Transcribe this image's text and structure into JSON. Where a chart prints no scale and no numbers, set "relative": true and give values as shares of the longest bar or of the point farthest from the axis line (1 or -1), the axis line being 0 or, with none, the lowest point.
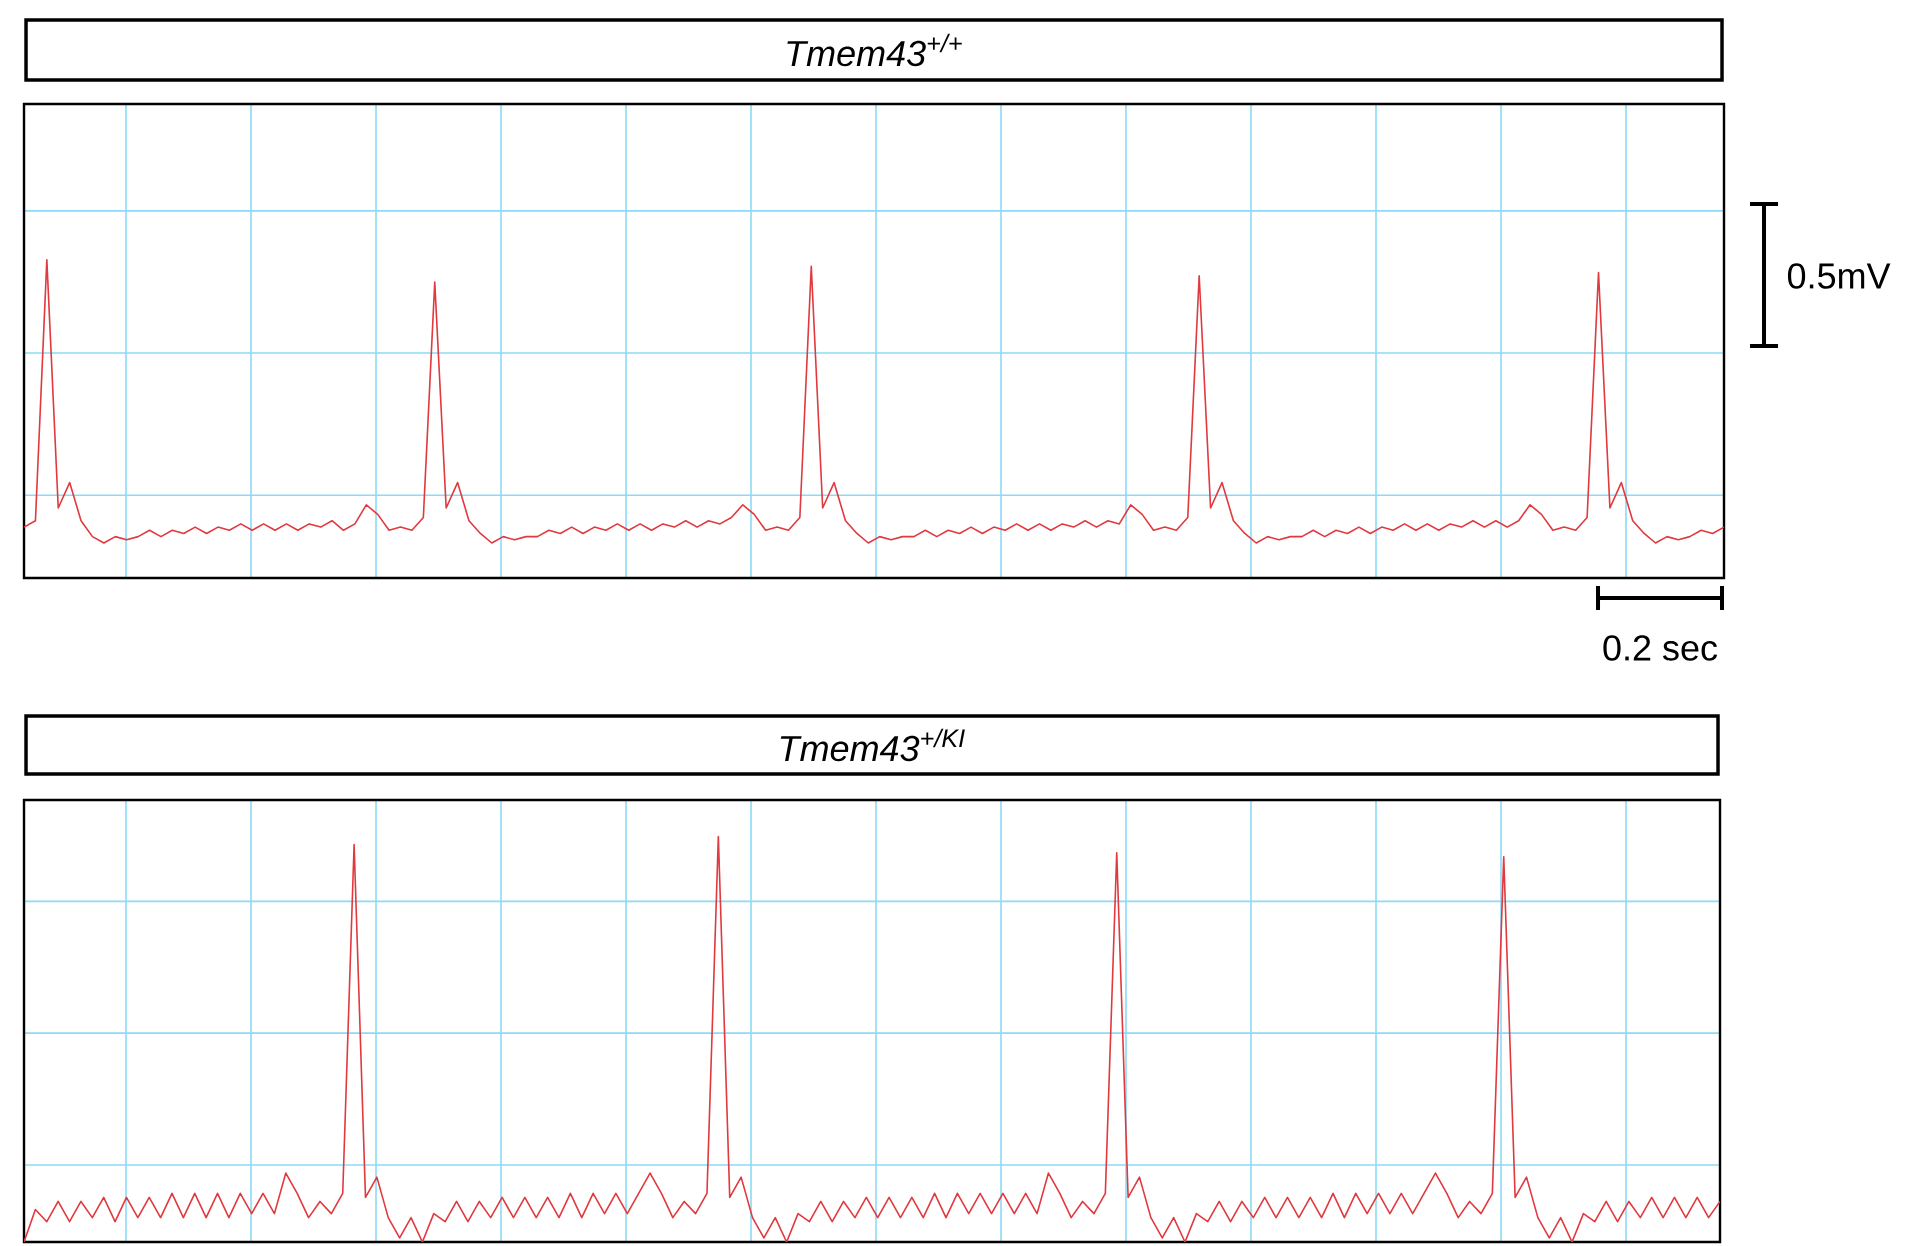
{
  "chart_data": [
    {
      "type": "line",
      "title": "Tmem43$^{+/+}$",
      "relative": true,
      "grid": true,
      "tick_labels": false,
      "color": "#e0393e",
      "annotations": [
        "0.5mV",
        "0.2 sec"
      ],
      "categories": [
        null,
        null,
        null,
        null,
        null,
        null,
        null,
        null,
        null,
        null,
        null,
        null,
        null,
        null,
        null,
        null,
        null,
        null,
        null,
        null,
        null,
        null,
        null,
        null,
        null,
        null,
        null,
        null,
        null,
        null,
        null,
        null,
        null,
        null,
        null,
        null,
        null,
        null,
        null,
        null,
        null,
        null,
        null,
        null,
        null,
        null,
        null,
        null,
        null,
        null,
        null,
        null,
        null,
        null,
        null,
        null,
        null,
        null,
        null,
        null,
        null,
        null,
        null,
        null,
        null,
        null,
        null,
        null,
        null,
        null,
        null,
        null,
        null,
        null,
        null,
        null,
        null,
        null,
        null,
        null,
        null,
        null,
        null,
        null,
        null,
        null,
        null,
        null,
        null,
        null,
        null,
        null,
        null,
        null,
        null,
        null,
        null,
        null,
        null,
        null,
        null,
        null,
        null,
        null,
        null,
        null,
        null,
        null,
        null,
        null,
        null,
        null,
        null,
        null,
        null,
        null,
        null,
        null,
        null,
        null,
        null,
        null,
        null,
        null,
        null,
        null,
        null,
        null,
        null,
        null,
        null,
        null,
        null,
        null,
        null,
        null,
        null,
        null,
        null,
        null,
        null,
        null,
        null,
        null,
        null,
        null,
        null,
        null,
        null,
        null
      ],
      "values": [
        0.16,
        0.18,
        1.0,
        0.22,
        0.3,
        0.18,
        0.13,
        0.11,
        0.13,
        0.12,
        0.13,
        0.15,
        0.13,
        0.15,
        0.14,
        0.16,
        0.14,
        0.16,
        0.15,
        0.17,
        0.15,
        0.17,
        0.15,
        0.17,
        0.15,
        0.17,
        0.16,
        0.18,
        0.15,
        0.17,
        0.23,
        0.2,
        0.15,
        0.16,
        0.15,
        0.19,
        0.93,
        0.22,
        0.3,
        0.18,
        0.14,
        0.11,
        0.13,
        0.12,
        0.13,
        0.13,
        0.15,
        0.14,
        0.16,
        0.14,
        0.16,
        0.15,
        0.17,
        0.15,
        0.17,
        0.15,
        0.17,
        0.16,
        0.18,
        0.16,
        0.18,
        0.17,
        0.19,
        0.23,
        0.2,
        0.15,
        0.16,
        0.15,
        0.19,
        0.98,
        0.22,
        0.3,
        0.18,
        0.14,
        0.11,
        0.13,
        0.12,
        0.13,
        0.13,
        0.15,
        0.13,
        0.15,
        0.14,
        0.16,
        0.14,
        0.16,
        0.15,
        0.17,
        0.15,
        0.17,
        0.15,
        0.17,
        0.16,
        0.18,
        0.16,
        0.18,
        0.17,
        0.23,
        0.2,
        0.15,
        0.16,
        0.15,
        0.19,
        0.95,
        0.22,
        0.3,
        0.18,
        0.14,
        0.11,
        0.13,
        0.12,
        0.13,
        0.13,
        0.15,
        0.13,
        0.15,
        0.14,
        0.16,
        0.14,
        0.16,
        0.15,
        0.17,
        0.15,
        0.17,
        0.15,
        0.17,
        0.16,
        0.18,
        0.16,
        0.18,
        0.16,
        0.18,
        0.23,
        0.2,
        0.15,
        0.16,
        0.15,
        0.19,
        0.96,
        0.22,
        0.3,
        0.18,
        0.14,
        0.11,
        0.13,
        0.12,
        0.13,
        0.15,
        0.14,
        0.16
      ]
    },
    {
      "type": "line",
      "title": "Tmem43$^{+/KI}$",
      "relative": true,
      "grid": true,
      "tick_labels": false,
      "color": "#e0393e",
      "categories": [
        null,
        null,
        null,
        null,
        null,
        null,
        null,
        null,
        null,
        null,
        null,
        null,
        null,
        null,
        null,
        null,
        null,
        null,
        null,
        null,
        null,
        null,
        null,
        null,
        null,
        null,
        null,
        null,
        null,
        null,
        null,
        null,
        null,
        null,
        null,
        null,
        null,
        null,
        null,
        null,
        null,
        null,
        null,
        null,
        null,
        null,
        null,
        null,
        null,
        null,
        null,
        null,
        null,
        null,
        null,
        null,
        null,
        null,
        null,
        null,
        null,
        null,
        null,
        null,
        null,
        null,
        null,
        null,
        null,
        null,
        null,
        null,
        null,
        null,
        null,
        null,
        null,
        null,
        null,
        null,
        null,
        null,
        null,
        null,
        null,
        null,
        null,
        null,
        null,
        null,
        null,
        null,
        null,
        null,
        null,
        null,
        null,
        null,
        null,
        null,
        null,
        null,
        null,
        null,
        null,
        null,
        null,
        null,
        null,
        null,
        null,
        null,
        null,
        null,
        null,
        null,
        null,
        null,
        null,
        null,
        null,
        null,
        null,
        null,
        null,
        null,
        null,
        null,
        null,
        null,
        null,
        null,
        null,
        null,
        null,
        null,
        null,
        null,
        null,
        null,
        null,
        null,
        null,
        null,
        null,
        null,
        null,
        null,
        null,
        null
      ],
      "values": [
        0.0,
        0.08,
        0.05,
        0.1,
        0.05,
        0.1,
        0.06,
        0.11,
        0.05,
        0.11,
        0.06,
        0.11,
        0.06,
        0.12,
        0.06,
        0.12,
        0.06,
        0.12,
        0.06,
        0.12,
        0.07,
        0.12,
        0.07,
        0.17,
        0.12,
        0.06,
        0.1,
        0.07,
        0.12,
        0.98,
        0.11,
        0.16,
        0.06,
        0.01,
        0.06,
        0.0,
        0.07,
        0.05,
        0.1,
        0.05,
        0.1,
        0.06,
        0.11,
        0.06,
        0.11,
        0.06,
        0.11,
        0.06,
        0.12,
        0.06,
        0.12,
        0.07,
        0.12,
        0.07,
        0.12,
        0.17,
        0.12,
        0.06,
        0.1,
        0.07,
        0.12,
        1.0,
        0.11,
        0.16,
        0.06,
        0.01,
        0.06,
        0.0,
        0.07,
        0.05,
        0.1,
        0.05,
        0.1,
        0.06,
        0.11,
        0.06,
        0.11,
        0.06,
        0.11,
        0.06,
        0.12,
        0.06,
        0.12,
        0.07,
        0.12,
        0.07,
        0.12,
        0.07,
        0.12,
        0.07,
        0.17,
        0.12,
        0.06,
        0.1,
        0.07,
        0.12,
        0.96,
        0.11,
        0.16,
        0.06,
        0.01,
        0.06,
        0.0,
        0.07,
        0.05,
        0.1,
        0.05,
        0.1,
        0.06,
        0.11,
        0.06,
        0.11,
        0.06,
        0.11,
        0.06,
        0.12,
        0.06,
        0.12,
        0.07,
        0.12,
        0.07,
        0.12,
        0.07,
        0.12,
        0.17,
        0.12,
        0.06,
        0.1,
        0.07,
        0.12,
        0.95,
        0.11,
        0.16,
        0.06,
        0.01,
        0.06,
        0.0,
        0.07,
        0.05,
        0.1,
        0.05,
        0.1,
        0.06,
        0.11,
        0.06,
        0.11,
        0.06,
        0.11,
        0.06,
        0.1
      ]
    }
  ]
}
